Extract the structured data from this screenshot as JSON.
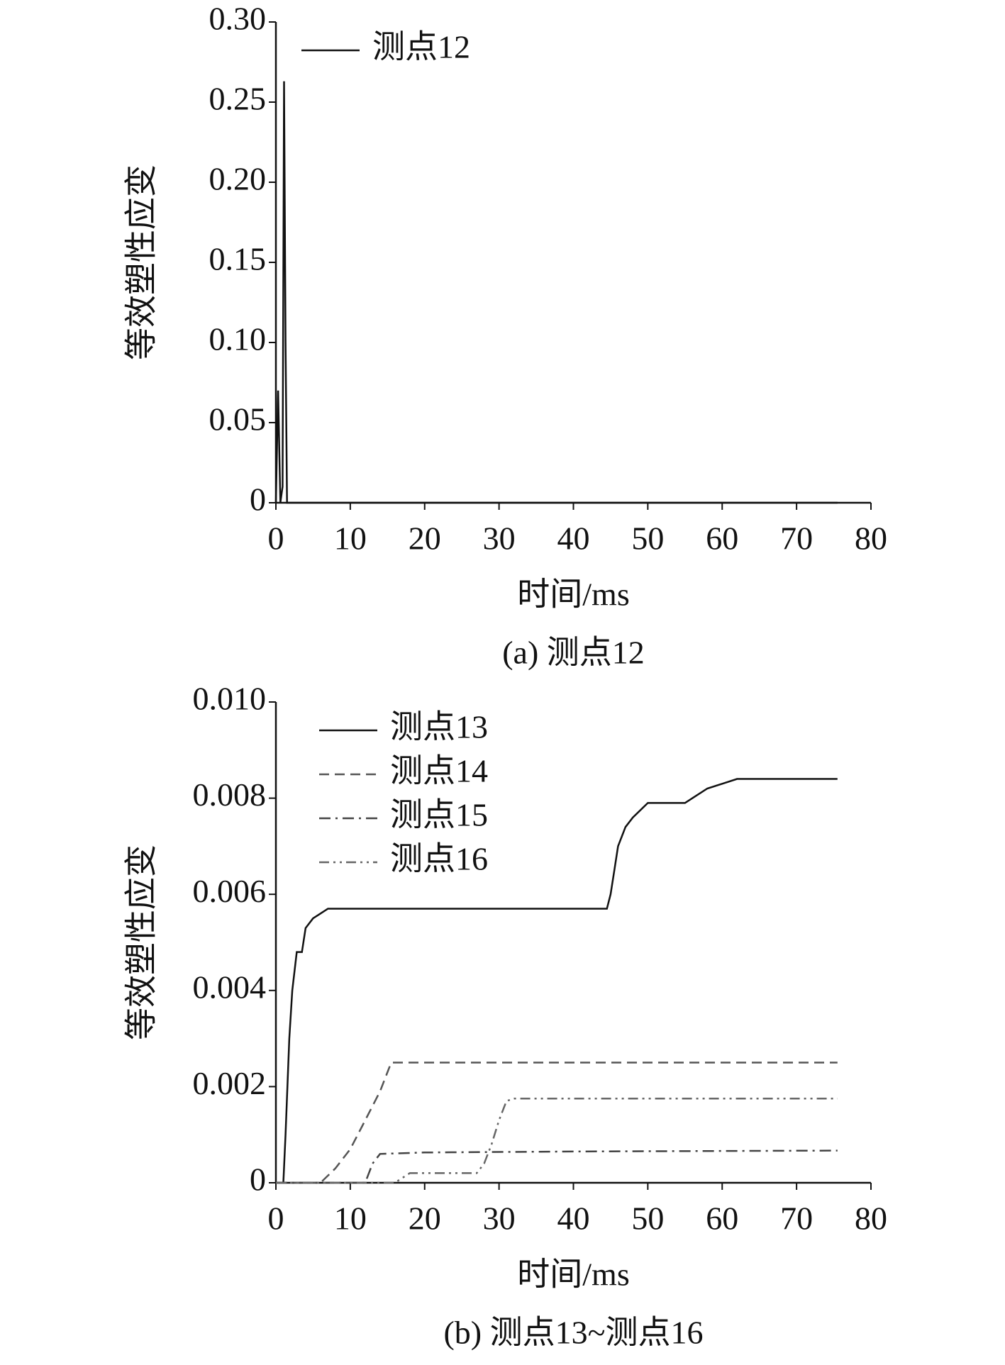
{
  "chart_data": [
    {
      "type": "line",
      "caption": "(a) 测点12",
      "xlabel": "时间/ms",
      "ylabel": "等效塑性应变",
      "xlim": [
        0,
        80
      ],
      "xticks": [
        0,
        10,
        20,
        30,
        40,
        50,
        60,
        70,
        80
      ],
      "ylim": [
        0,
        0.3
      ],
      "yticks": [
        0,
        0.05,
        {
          "value": 0.1,
          "label": "0.10"
        },
        0.15,
        {
          "value": 0.2,
          "label": "0.20"
        },
        0.25,
        {
          "value": 0.3,
          "label": "0.30"
        }
      ],
      "legend": "upper left",
      "series": [
        {
          "name": "测点12",
          "color": "#111111",
          "dash": "solid",
          "x": [
            0,
            0.3,
            0.6,
            0.9,
            1.1,
            1.3,
            1.5,
            75.5
          ],
          "values": [
            0,
            0.07,
            0.0,
            0.01,
            0.263,
            0.1,
            0,
            0
          ]
        }
      ]
    },
    {
      "type": "line",
      "caption": "(b) 测点13~测点16",
      "xlabel": "时间/ms",
      "ylabel": "等效塑性应变",
      "xlim": [
        0,
        80
      ],
      "xticks": [
        0,
        10,
        20,
        30,
        40,
        50,
        60,
        70,
        80
      ],
      "ylim": [
        0,
        0.01
      ],
      "yticks": [
        0,
        0.002,
        0.004,
        0.006,
        0.008,
        {
          "value": 0.01,
          "label": "0.010"
        }
      ],
      "legend": "upper left",
      "series": [
        {
          "name": "测点13",
          "color": "#111111",
          "dash": "solid",
          "x": [
            0,
            1,
            1.3,
            1.8,
            2.2,
            2.8,
            3.5,
            4,
            5,
            6,
            7,
            10,
            20,
            30,
            40,
            44.5,
            45,
            45.5,
            46,
            47,
            48,
            50,
            51,
            55,
            56,
            58,
            60,
            62,
            75.5
          ],
          "values": [
            0,
            0,
            0.001,
            0.003,
            0.004,
            0.0048,
            0.0048,
            0.0053,
            0.0055,
            0.0056,
            0.0057,
            0.0057,
            0.0057,
            0.0057,
            0.0057,
            0.0057,
            0.006,
            0.0065,
            0.007,
            0.0074,
            0.0076,
            0.0079,
            0.0079,
            0.0079,
            0.008,
            0.0082,
            0.0083,
            0.0084,
            0.0084
          ]
        },
        {
          "name": "测点14",
          "color": "#555555",
          "dash": "dashed",
          "x": [
            0,
            6,
            8,
            10,
            12,
            14,
            15.5,
            75.5
          ],
          "values": [
            0,
            0,
            0.0003,
            0.0007,
            0.0013,
            0.0019,
            0.0025,
            0.0025
          ]
        },
        {
          "name": "测点15",
          "color": "#444444",
          "dash": "dashdot",
          "x": [
            0,
            12,
            13,
            14,
            20,
            40,
            75.5
          ],
          "values": [
            0,
            0,
            0.0004,
            0.0006,
            0.00063,
            0.00065,
            0.00067
          ]
        },
        {
          "name": "测点16",
          "color": "#666666",
          "dash": "dashdotdot",
          "x": [
            0,
            16,
            18,
            27,
            28,
            29,
            30,
            31,
            32,
            75.5
          ],
          "values": [
            0,
            0,
            0.0002,
            0.0002,
            0.0004,
            0.0008,
            0.0013,
            0.0017,
            0.00175,
            0.00175
          ]
        }
      ]
    }
  ]
}
